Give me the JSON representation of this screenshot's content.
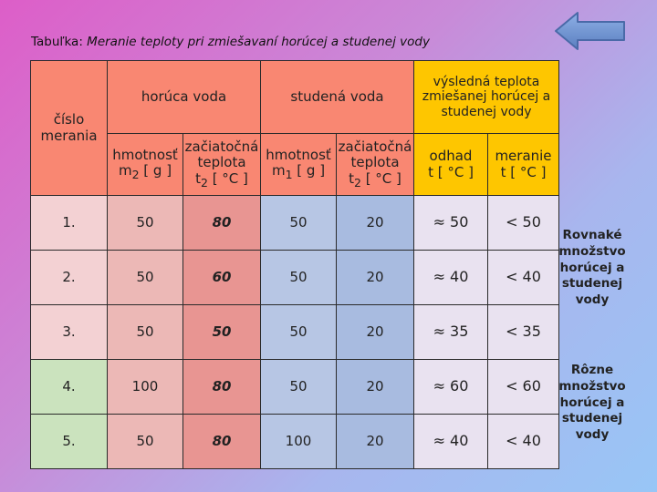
{
  "caption": {
    "label": "Tabuľka:",
    "text": "Meranie teploty pri zmiešavaní horúcej a studenej vody"
  },
  "headers": {
    "number": "číslo merania",
    "hot": "horúca voda",
    "cold": "studená voda",
    "result": "výsledná teplota zmiešanej horúcej a studenej vody",
    "hot_mass": [
      "hmotnosť",
      "m",
      "2",
      " [ g ]"
    ],
    "hot_temp": [
      "začiatočná",
      "teplota",
      "t",
      "2",
      " [ °C ]"
    ],
    "cold_mass": [
      "hmotnosť",
      "m",
      "1",
      " [ g ]"
    ],
    "cold_temp": [
      "začiatočná",
      "teplota",
      "t",
      "2",
      " [ °C ]"
    ],
    "estimate": [
      "odhad",
      "t [ °C ]"
    ],
    "measured": [
      "meranie",
      "t [ °C ]"
    ]
  },
  "rows": [
    {
      "no": "1.",
      "m2": "50",
      "t2": "80",
      "m1": "50",
      "t1": "20",
      "estimate": "≈ 50",
      "measured": "< 50"
    },
    {
      "no": "2.",
      "m2": "50",
      "t2": "60",
      "m1": "50",
      "t1": "20",
      "estimate": "≈ 40",
      "measured": "< 40"
    },
    {
      "no": "3.",
      "m2": "50",
      "t2": "50",
      "m1": "50",
      "t1": "20",
      "estimate": "≈ 35",
      "measured": "< 35"
    },
    {
      "no": "4.",
      "m2": "100",
      "t2": "80",
      "m1": "50",
      "t1": "20",
      "estimate": "≈ 60",
      "measured": "< 60"
    },
    {
      "no": "5.",
      "m2": "50",
      "t2": "80",
      "m1": "100",
      "t1": "20",
      "estimate": "≈ 40",
      "measured": "< 40"
    }
  ],
  "notes": {
    "equal": "Rovnaké množstvo horúcej a studenej vody",
    "different": "Rôzne množstvo horúcej a studenej vody"
  },
  "colors": {
    "header": "#f98772",
    "hot": "#ecb8b6",
    "cold": "#b7c6e4",
    "result": "#fec600",
    "arrow": "#6f93cf"
  },
  "icons": {
    "back": "back-arrow-icon"
  }
}
